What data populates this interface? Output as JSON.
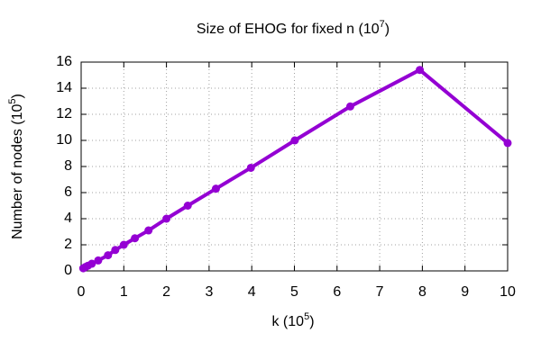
{
  "chart_data": {
    "type": "line",
    "title": [
      "Size of EHOG for fixed n (10",
      "7",
      ")"
    ],
    "xlabel": [
      "k (10",
      "5",
      ")"
    ],
    "ylabel": [
      "Number of nodes (10",
      "5",
      ")"
    ],
    "x": [
      0.05,
      0.1,
      0.16,
      0.25,
      0.4,
      0.63,
      0.8,
      1.0,
      1.26,
      1.58,
      2.0,
      2.5,
      3.16,
      3.98,
      5.01,
      6.31,
      7.94,
      10
    ],
    "values": [
      0.2,
      0.3,
      0.4,
      0.55,
      0.8,
      1.2,
      1.6,
      2.0,
      2.5,
      3.1,
      4.0,
      5.0,
      6.3,
      7.9,
      10.0,
      12.6,
      15.4,
      9.8
    ],
    "color": "#9400d3",
    "xlim": [
      0,
      10
    ],
    "xticks": [
      0,
      1,
      2,
      3,
      4,
      5,
      6,
      7,
      8,
      9,
      10
    ],
    "ylim": [
      0,
      16
    ],
    "yticks": [
      0,
      2,
      4,
      6,
      8,
      10,
      12,
      14,
      16
    ],
    "grid": true
  }
}
